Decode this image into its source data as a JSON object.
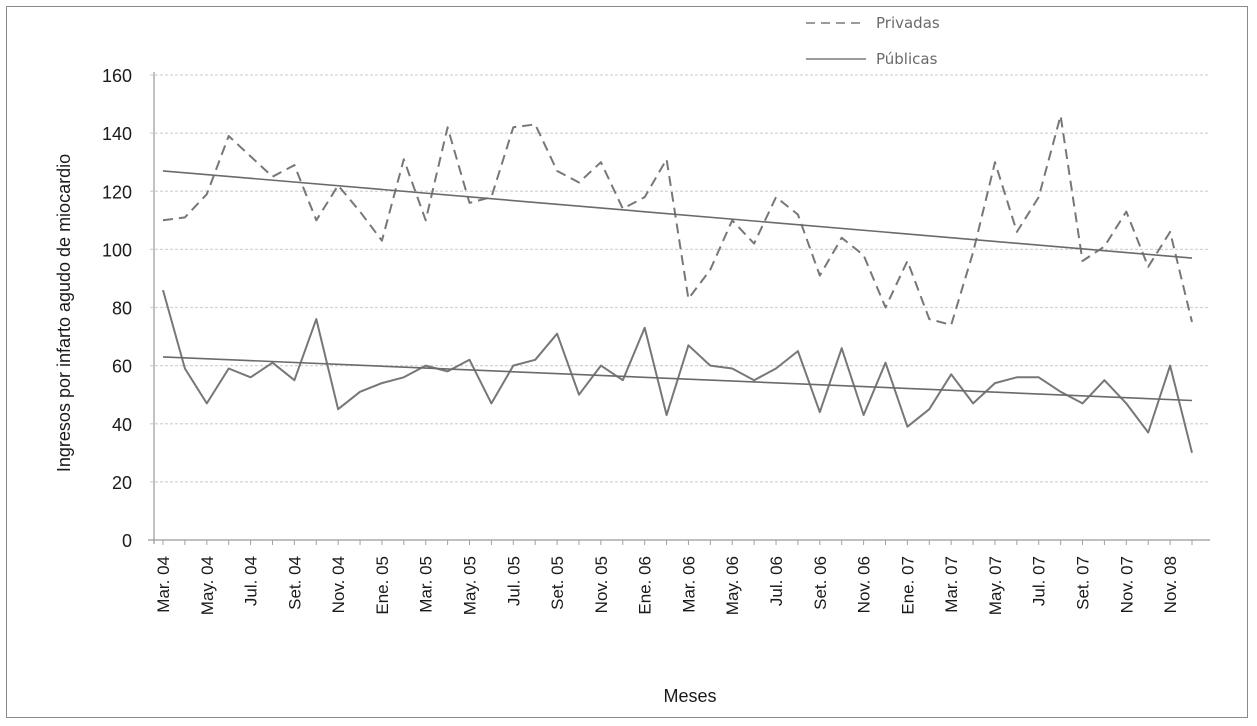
{
  "chart_data": {
    "type": "line",
    "ylabel": "Ingresos por infarto agudo de miocardio",
    "xlabel": "Meses",
    "ylim": [
      0,
      160
    ],
    "yticks": [
      0,
      20,
      40,
      60,
      80,
      100,
      120,
      140,
      160
    ],
    "grid": true,
    "legend_position": "top-right",
    "x_tick_labels": [
      "Mar. 04",
      "May. 04",
      "Jul. 04",
      "Set. 04",
      "Nov. 04",
      "Ene. 05",
      "Mar. 05",
      "May. 05",
      "Jul. 05",
      "Set. 05",
      "Nov. 05",
      "Ene. 06",
      "Mar. 06",
      "May. 06",
      "Jul. 06",
      "Set. 06",
      "Nov. 06",
      "Ene. 07",
      "Mar. 07",
      "May. 07",
      "Jul. 07",
      "Set. 07",
      "Nov. 07",
      "Nov. 08"
    ],
    "x_tick_index": [
      0,
      2,
      4,
      6,
      8,
      10,
      12,
      14,
      16,
      18,
      20,
      22,
      24,
      26,
      28,
      30,
      32,
      34,
      36,
      38,
      40,
      42,
      44,
      46
    ],
    "series": [
      {
        "name": "Privadas",
        "style": "dashed",
        "color": "#777777",
        "values": [
          110,
          111,
          119,
          139,
          132,
          125,
          129,
          110,
          122,
          113,
          103,
          131,
          110,
          142,
          116,
          118,
          142,
          143,
          127,
          123,
          130,
          114,
          118,
          131,
          83,
          93,
          110,
          102,
          118,
          112,
          91,
          104,
          98,
          80,
          96,
          76,
          74,
          99,
          130,
          106,
          118,
          146,
          96,
          101,
          113,
          94,
          106,
          75
        ],
        "trend": [
          127,
          97
        ]
      },
      {
        "name": "Públicas",
        "style": "solid",
        "color": "#777777",
        "values": [
          86,
          59,
          47,
          59,
          56,
          61,
          55,
          76,
          45,
          51,
          54,
          56,
          60,
          58,
          62,
          47,
          60,
          62,
          71,
          50,
          60,
          55,
          73,
          43,
          67,
          60,
          59,
          55,
          59,
          65,
          44,
          66,
          43,
          61,
          39,
          45,
          57,
          47,
          54,
          56,
          56,
          51,
          47,
          55,
          47,
          37,
          60,
          30
        ],
        "trend": [
          63,
          48
        ]
      }
    ]
  }
}
